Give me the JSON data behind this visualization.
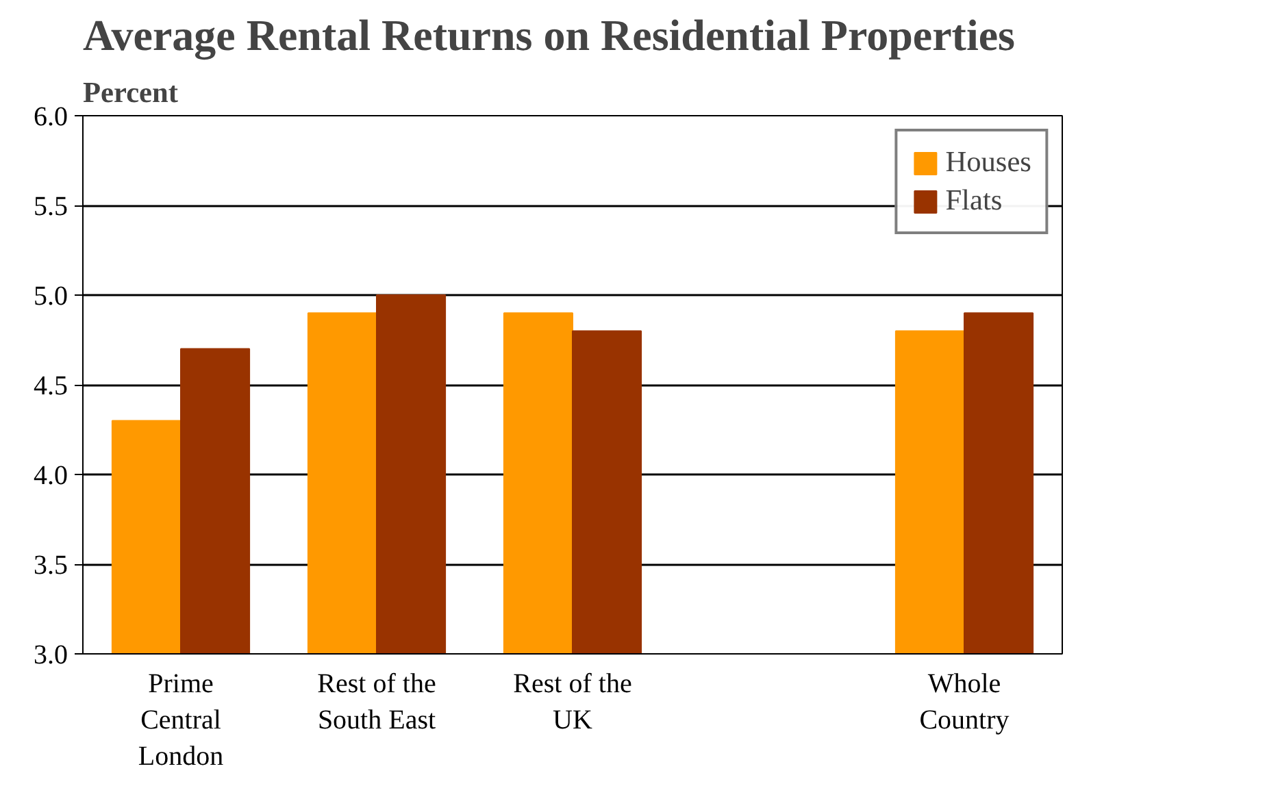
{
  "chart_data": {
    "type": "bar",
    "title": "Average Rental Returns on Residential Properties",
    "ylabel": "Percent",
    "categories": [
      "Prime Central London",
      "Rest of the South East",
      "Rest of the UK",
      null,
      "Whole Country"
    ],
    "series": [
      {
        "name": "Houses",
        "color": "#ff9900",
        "values": [
          4.3,
          4.9,
          4.9,
          null,
          4.8
        ]
      },
      {
        "name": "Flats",
        "color": "#993300",
        "values": [
          4.7,
          5.0,
          4.8,
          null,
          4.9
        ]
      }
    ],
    "ylim": [
      3,
      6
    ],
    "yticks": [
      {
        "value": 3,
        "label": "3.0"
      },
      {
        "value": 3.5,
        "label": "3.5"
      },
      {
        "value": 4,
        "label": "4.0"
      },
      {
        "value": 4.5,
        "label": "4.5"
      },
      {
        "value": 5,
        "label": "5.0"
      },
      {
        "value": 5.5,
        "label": "5.5"
      },
      {
        "value": 6,
        "label": "6.0"
      }
    ],
    "grid": "y",
    "legend": "top right"
  }
}
